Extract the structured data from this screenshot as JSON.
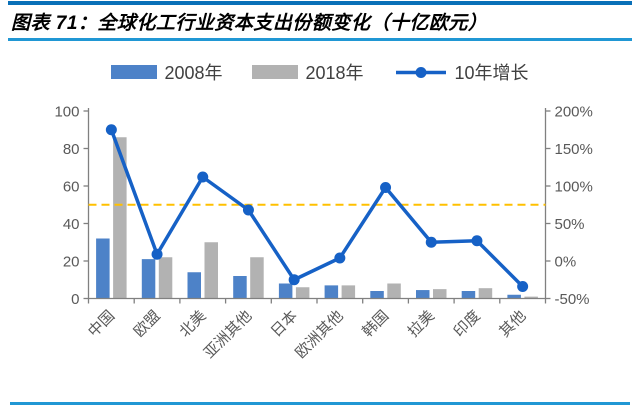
{
  "page": {
    "title": "图表 71：全球化工行业资本支出份额变化（十亿欧元）"
  },
  "colors": {
    "rule_top": "#0970b8",
    "rule_mid": "#2097d4",
    "rule_bottom": "#2097d4",
    "axis_line": "#808080",
    "axis_text": "#595959",
    "legend_text": "#404040"
  },
  "chart_data": {
    "type": "bar",
    "subtype": "combo-bar-line-dual-axis",
    "title": "全球化工行业资本支出份额变化（十亿欧元）",
    "categories": [
      "中国",
      "欧盟",
      "北美",
      "亚洲其他",
      "日本",
      "欧洲其他",
      "韩国",
      "拉美",
      "印度",
      "其他"
    ],
    "series": [
      {
        "name": "2008年",
        "chart_type": "bar",
        "axis": "left",
        "color": "#4d82c8",
        "values": [
          32,
          21,
          14,
          12,
          8,
          7,
          4,
          4.5,
          4,
          2
        ]
      },
      {
        "name": "2018年",
        "chart_type": "bar",
        "axis": "left",
        "color": "#b2b2b2",
        "values": [
          86,
          22,
          30,
          22,
          6,
          7,
          8,
          5,
          5.5,
          1
        ]
      },
      {
        "name": "10年增长",
        "chart_type": "line",
        "axis": "right",
        "color": "#1661c6",
        "unit": "%",
        "values": [
          175,
          9,
          112,
          68,
          -25,
          4,
          98,
          25,
          27,
          -34
        ]
      }
    ],
    "left_axis": {
      "min": 0,
      "max": 100,
      "ticks": [
        0,
        20,
        40,
        60,
        80,
        100
      ]
    },
    "right_axis": {
      "min": -50,
      "max": 200,
      "ticks": [
        -50,
        0,
        50,
        100,
        150,
        200
      ],
      "unit": "%"
    },
    "reference_line": {
      "axis": "right",
      "value": 75,
      "color": "#ffc000",
      "style": "dashed"
    },
    "grid": false,
    "legend_position": "top"
  }
}
